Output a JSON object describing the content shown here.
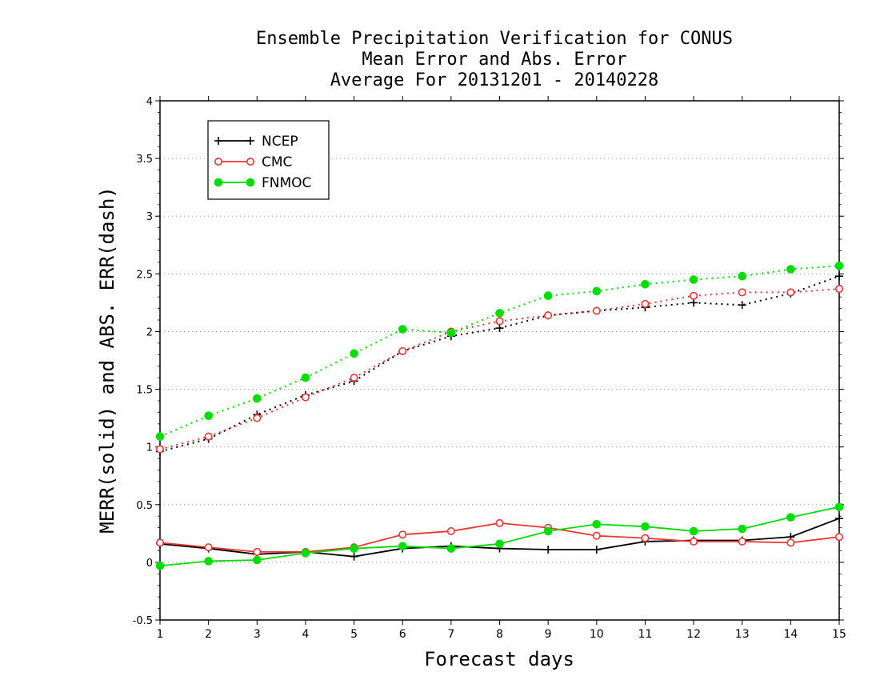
{
  "chart_data": {
    "type": "line",
    "title_lines": [
      "Ensemble Precipitation Verification for CONUS",
      "Mean Error and Abs. Error",
      "Average For 20131201 - 20140228"
    ],
    "xlabel": "Forecast days",
    "ylabel": "MERR(solid) and ABS. ERR(dash)",
    "x": [
      1,
      2,
      3,
      4,
      5,
      6,
      7,
      8,
      9,
      10,
      11,
      12,
      13,
      14,
      15
    ],
    "xlim": [
      1,
      15
    ],
    "ylim": [
      -0.5,
      4
    ],
    "yticks": [
      -0.5,
      0,
      0.5,
      1,
      1.5,
      2,
      2.5,
      3,
      3.5,
      4
    ],
    "ytick_labels": [
      "-0.5",
      "0",
      "0.5",
      "1",
      "1.5",
      "2",
      "2.5",
      "3",
      "3.5",
      "4"
    ],
    "xtick_labels": [
      "1",
      "2",
      "3",
      "4",
      "5",
      "6",
      "7",
      "8",
      "9",
      "10",
      "11",
      "12",
      "13",
      "14",
      "15"
    ],
    "grid": true,
    "legend_placement": "top-left",
    "series": [
      {
        "name": "NCEP",
        "color": "#000000",
        "marker": "plus",
        "merr": [
          0.16,
          0.12,
          0.07,
          0.09,
          0.05,
          0.12,
          0.14,
          0.12,
          0.11,
          0.11,
          0.18,
          0.19,
          0.19,
          0.22,
          0.38
        ],
        "abs_err": [
          0.96,
          1.07,
          1.28,
          1.45,
          1.57,
          1.83,
          1.96,
          2.03,
          2.14,
          2.18,
          2.21,
          2.25,
          2.23,
          2.33,
          2.48
        ]
      },
      {
        "name": "CMC",
        "color": "#ee3333",
        "marker": "open-circle",
        "merr": [
          0.17,
          0.13,
          0.09,
          0.09,
          0.13,
          0.24,
          0.27,
          0.34,
          0.3,
          0.23,
          0.21,
          0.18,
          0.18,
          0.17,
          0.22
        ],
        "abs_err": [
          0.98,
          1.09,
          1.25,
          1.43,
          1.6,
          1.83,
          2.0,
          2.09,
          2.14,
          2.18,
          2.24,
          2.31,
          2.34,
          2.34,
          2.37
        ]
      },
      {
        "name": "FNMOC",
        "color": "#00dd00",
        "marker": "filled-circle",
        "merr": [
          -0.03,
          0.01,
          0.02,
          0.08,
          0.12,
          0.14,
          0.12,
          0.16,
          0.27,
          0.33,
          0.31,
          0.27,
          0.29,
          0.39,
          0.48
        ],
        "abs_err": [
          1.09,
          1.27,
          1.42,
          1.6,
          1.81,
          2.02,
          1.99,
          2.16,
          2.31,
          2.35,
          2.41,
          2.45,
          2.48,
          2.54,
          2.57
        ]
      }
    ]
  }
}
